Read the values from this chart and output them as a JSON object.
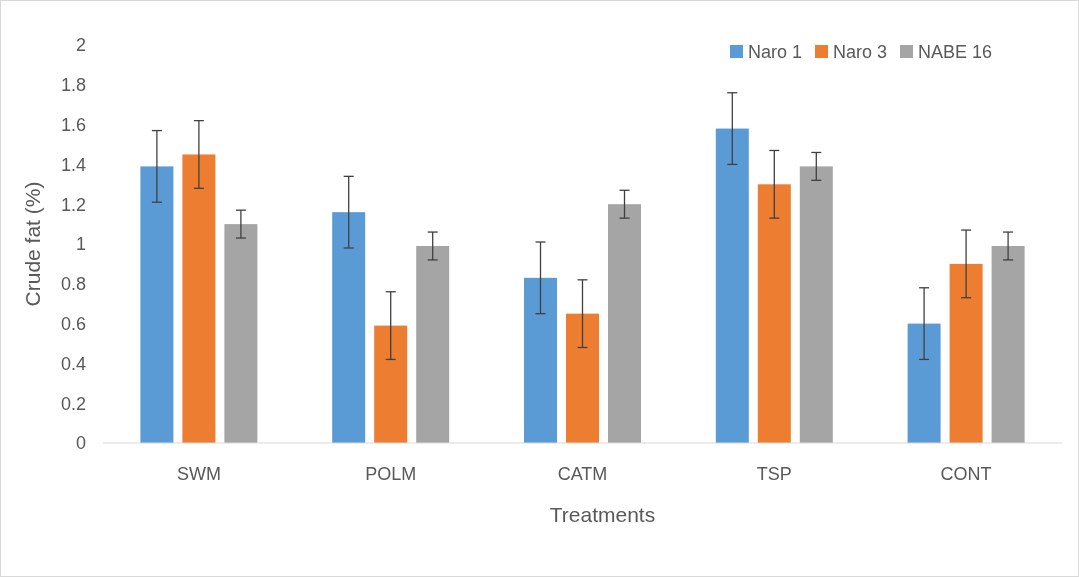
{
  "chart_data": {
    "type": "bar",
    "xlabel": "Treatments",
    "ylabel": "Crude fat (%)",
    "categories": [
      "SWM",
      "POLM",
      "CATM",
      "TSP",
      "CONT"
    ],
    "series": [
      {
        "name": "Naro 1",
        "color": "#5b9bd5",
        "values": [
          1.39,
          1.16,
          0.83,
          1.58,
          0.6
        ],
        "errors": [
          0.18,
          0.18,
          0.18,
          0.18,
          0.18
        ]
      },
      {
        "name": "Naro 3",
        "color": "#ed7d31",
        "values": [
          1.45,
          0.59,
          0.65,
          1.3,
          0.9
        ],
        "errors": [
          0.17,
          0.17,
          0.17,
          0.17,
          0.17
        ]
      },
      {
        "name": "NABE 16",
        "color": "#a5a5a5",
        "values": [
          1.1,
          0.99,
          1.2,
          1.39,
          0.99
        ],
        "errors": [
          0.07,
          0.07,
          0.07,
          0.07,
          0.07
        ]
      }
    ],
    "ylim": [
      0,
      2
    ],
    "yticks": [
      0,
      0.2,
      0.4,
      0.6,
      0.8,
      1,
      1.2,
      1.4,
      1.6,
      1.8,
      2
    ],
    "grid": false,
    "legend": "top right"
  }
}
